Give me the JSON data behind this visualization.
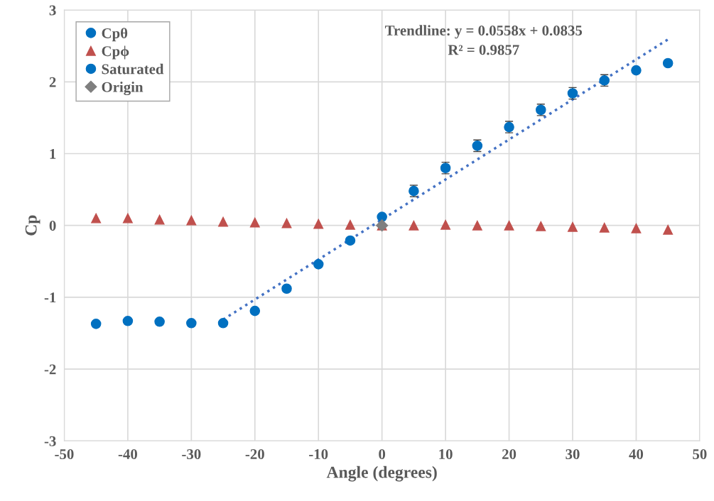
{
  "chart_data": {
    "type": "scatter",
    "xlabel": "Angle (degrees)",
    "ylabel": "Cp",
    "xlim": [
      -50,
      50
    ],
    "xticks": [
      -50,
      -40,
      -30,
      -20,
      -10,
      0,
      10,
      20,
      30,
      40,
      50
    ],
    "ylim": [
      -3,
      3
    ],
    "yticks": [
      -3,
      -2,
      -1,
      0,
      1,
      2,
      3
    ],
    "grid": true,
    "legend": "top left",
    "annotations": [
      "Trendline: y = 0.0558x + 0.0835",
      "R² = 0.9857"
    ],
    "series": [
      {
        "name": "Cpθ",
        "marker": "circle",
        "color": "#0070c0",
        "x": [
          -20,
          -15,
          -10,
          -5,
          0,
          5,
          10,
          15,
          20,
          25,
          30,
          35
        ],
        "values": [
          -1.19,
          -0.88,
          -0.54,
          -0.21,
          0.12,
          0.48,
          0.8,
          1.11,
          1.37,
          1.61,
          1.84,
          2.02
        ],
        "errors": [
          null,
          null,
          null,
          null,
          null,
          0.08,
          0.08,
          0.08,
          0.08,
          0.08,
          0.08,
          0.08
        ]
      },
      {
        "name": "Cpϕ",
        "marker": "triangle",
        "color": "#c0504d",
        "x": [
          -45,
          -40,
          -35,
          -30,
          -25,
          -20,
          -15,
          -10,
          -5,
          0,
          5,
          10,
          15,
          20,
          25,
          30,
          35,
          40,
          45
        ],
        "values": [
          0.1,
          0.1,
          0.08,
          0.07,
          0.05,
          0.04,
          0.03,
          0.02,
          0.01,
          0.0,
          0.0,
          0.01,
          0.0,
          0.0,
          -0.01,
          -0.02,
          -0.03,
          -0.04,
          -0.06
        ]
      },
      {
        "name": "Saturated",
        "marker": "circle",
        "color": "#0070c0",
        "x": [
          -45,
          -40,
          -35,
          -30,
          -25,
          40,
          45
        ],
        "values": [
          -1.37,
          -1.33,
          -1.34,
          -1.36,
          -1.36,
          2.16,
          2.26
        ]
      },
      {
        "name": "Origin",
        "marker": "diamond",
        "color": "#7f7f7f",
        "x": [
          0
        ],
        "values": [
          0
        ]
      },
      {
        "type": "line",
        "marker": "none",
        "line_style": "dotted",
        "color": "#4472c4",
        "x": [
          -25,
          45
        ],
        "values": [
          -1.31,
          2.59
        ]
      }
    ]
  }
}
